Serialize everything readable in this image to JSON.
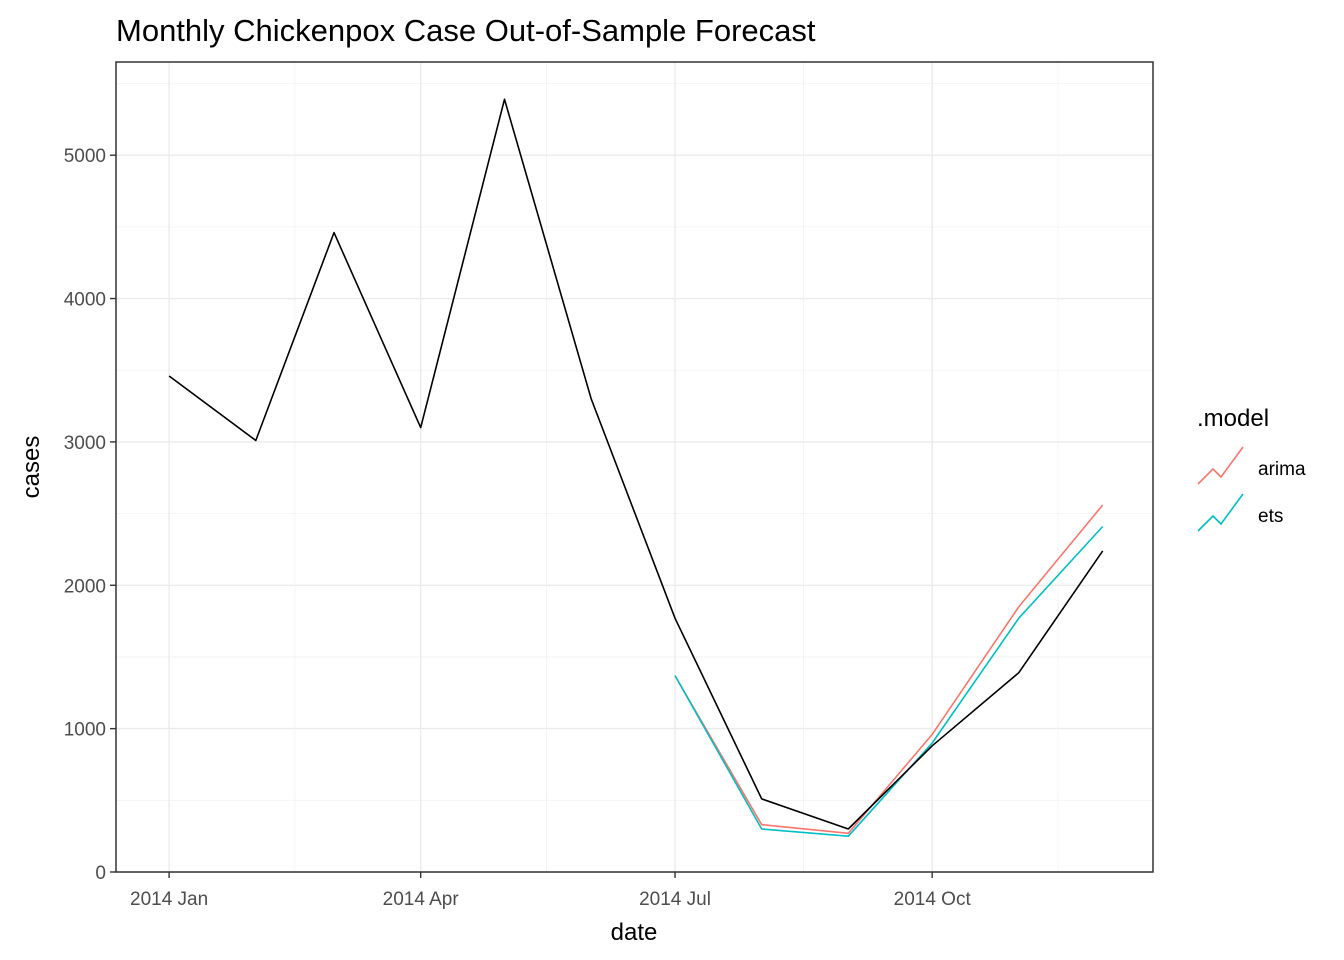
{
  "chart_data": {
    "type": "line",
    "title": "Monthly Chickenpox Case Out-of-Sample Forecast",
    "xlabel": "date",
    "ylabel": "cases",
    "x_ticks": [
      "2014 Jan",
      "2014 Apr",
      "2014 Jul",
      "2014 Oct"
    ],
    "y_ticks": [
      0,
      1000,
      2000,
      3000,
      4000,
      5000
    ],
    "ylim": [
      0,
      5650
    ],
    "xlim": [
      "2013-12-13",
      "2014-12-19"
    ],
    "grid": true,
    "legend_position": "right",
    "legend_title": ".model",
    "actual": {
      "color": "#000000",
      "x": [
        "2014-01-01",
        "2014-02-01",
        "2014-03-01",
        "2014-04-01",
        "2014-05-01",
        "2014-06-01",
        "2014-07-01",
        "2014-08-01",
        "2014-09-01",
        "2014-10-01",
        "2014-11-01",
        "2014-12-01"
      ],
      "values": [
        3460,
        3010,
        4460,
        3100,
        5390,
        3300,
        1770,
        510,
        300,
        880,
        1390,
        2240
      ]
    },
    "series": [
      {
        "name": "arima",
        "color": "#F8766D",
        "x": [
          "2014-07-01",
          "2014-08-01",
          "2014-09-01",
          "2014-10-01",
          "2014-11-01",
          "2014-12-01"
        ],
        "values": [
          1370,
          330,
          270,
          960,
          1850,
          2560
        ]
      },
      {
        "name": "ets",
        "color": "#00BFC4",
        "x": [
          "2014-07-01",
          "2014-08-01",
          "2014-09-01",
          "2014-10-01",
          "2014-11-01",
          "2014-12-01"
        ],
        "values": [
          1370,
          300,
          250,
          900,
          1770,
          2410
        ]
      }
    ]
  }
}
